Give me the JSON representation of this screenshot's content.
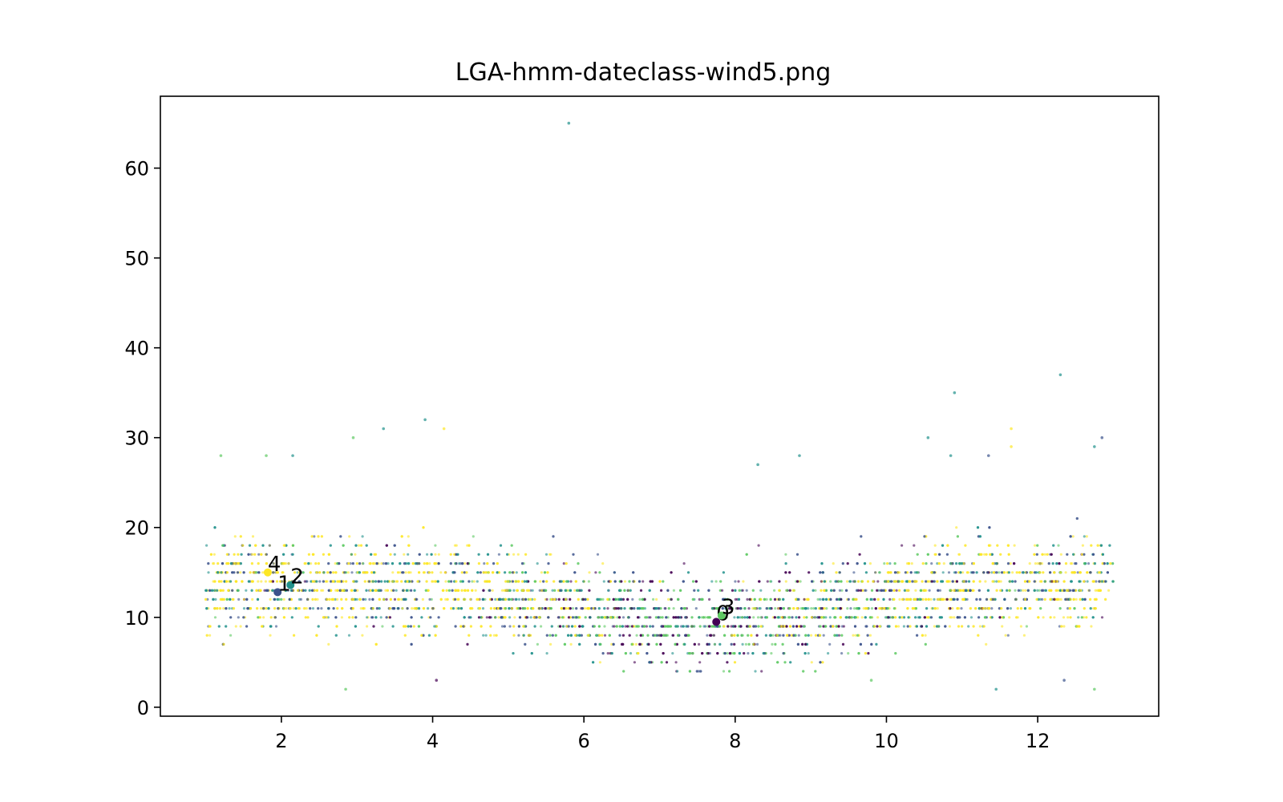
{
  "chart_data": {
    "type": "scatter",
    "title": "LGA-hmm-dateclass-wind5.png",
    "xlabel": "",
    "ylabel": "",
    "xlim": [
      0.4,
      13.6
    ],
    "ylim": [
      -1,
      68
    ],
    "x_ticks": [
      2,
      4,
      6,
      8,
      10,
      12
    ],
    "y_ticks": [
      0,
      10,
      20,
      30,
      40,
      50,
      60
    ],
    "grid": false,
    "legend": "none",
    "class_colors": [
      "#440154",
      "#3b528b",
      "#21918c",
      "#5ec962",
      "#fde725"
    ],
    "background_points": {
      "description_of_range": "dense daily observations, x 1-13, y mostly 5-20",
      "x_range": [
        1.0,
        13.0
      ],
      "y_range": [
        2,
        65
      ]
    },
    "outliers": [
      {
        "x": 5.8,
        "y": 65,
        "class": 2
      },
      {
        "x": 10.9,
        "y": 35,
        "class": 2
      },
      {
        "x": 12.3,
        "y": 37,
        "class": 2
      },
      {
        "x": 3.9,
        "y": 32,
        "class": 2
      },
      {
        "x": 4.15,
        "y": 31,
        "class": 4
      },
      {
        "x": 3.35,
        "y": 31,
        "class": 2
      },
      {
        "x": 2.95,
        "y": 30,
        "class": 3
      },
      {
        "x": 10.55,
        "y": 30,
        "class": 2
      },
      {
        "x": 11.65,
        "y": 31,
        "class": 4
      },
      {
        "x": 12.85,
        "y": 30,
        "class": 1
      },
      {
        "x": 12.75,
        "y": 29,
        "class": 2
      },
      {
        "x": 11.65,
        "y": 29,
        "class": 4
      },
      {
        "x": 8.85,
        "y": 28,
        "class": 2
      },
      {
        "x": 10.85,
        "y": 28,
        "class": 2
      },
      {
        "x": 1.2,
        "y": 28,
        "class": 3
      },
      {
        "x": 1.8,
        "y": 28,
        "class": 3
      },
      {
        "x": 2.15,
        "y": 28,
        "class": 2
      },
      {
        "x": 11.35,
        "y": 28,
        "class": 1
      },
      {
        "x": 8.3,
        "y": 27,
        "class": 2
      },
      {
        "x": 2.85,
        "y": 2,
        "class": 3
      },
      {
        "x": 12.75,
        "y": 2,
        "class": 3
      },
      {
        "x": 11.45,
        "y": 2,
        "class": 2
      },
      {
        "x": 4.05,
        "y": 3,
        "class": 0
      },
      {
        "x": 9.8,
        "y": 3,
        "class": 3
      },
      {
        "x": 12.35,
        "y": 3,
        "class": 1
      }
    ],
    "centroids": [
      {
        "label": "0",
        "x": 7.75,
        "y": 9.5,
        "class": 0
      },
      {
        "label": "1",
        "x": 1.95,
        "y": 12.8,
        "class": 1
      },
      {
        "label": "2",
        "x": 2.12,
        "y": 13.6,
        "class": 2
      },
      {
        "label": "3",
        "x": 7.82,
        "y": 10.2,
        "class": 3
      },
      {
        "label": "4",
        "x": 1.82,
        "y": 15.0,
        "class": 4
      }
    ]
  }
}
